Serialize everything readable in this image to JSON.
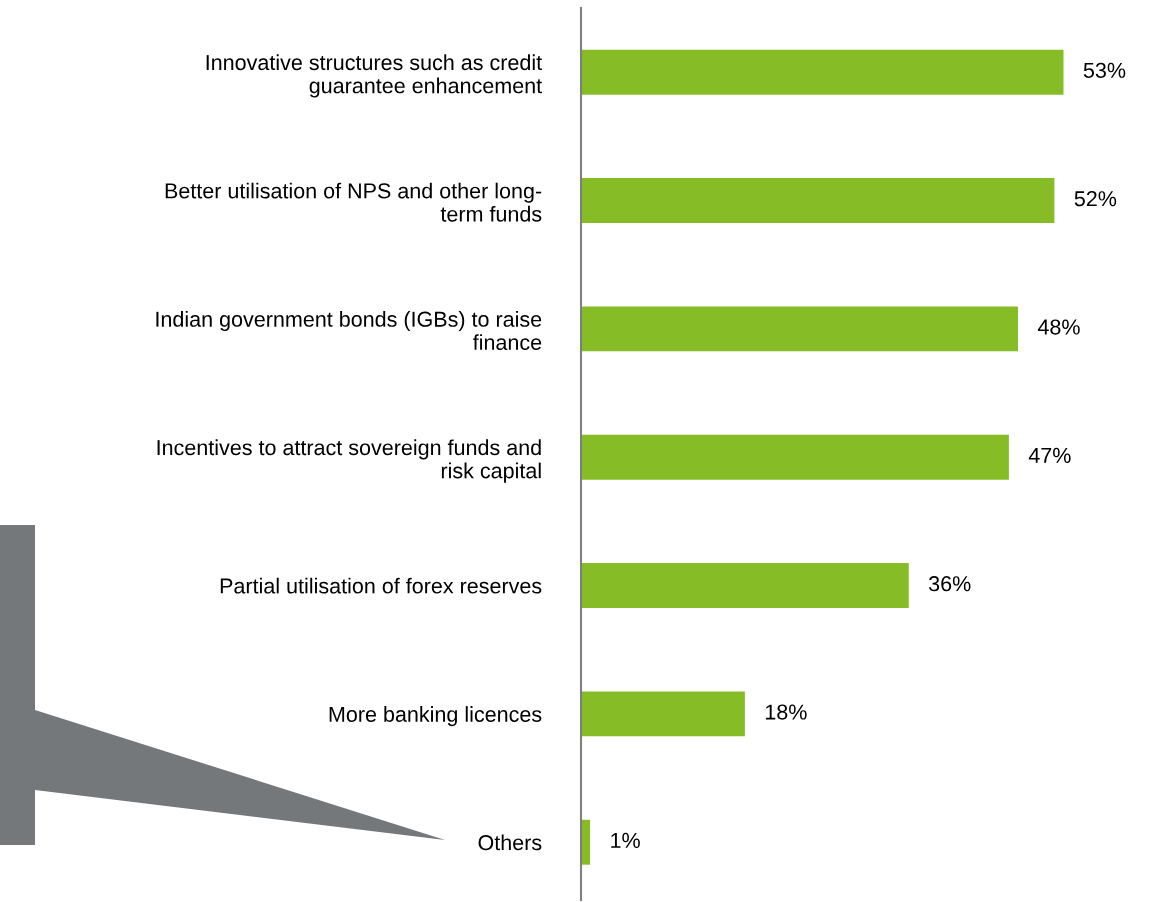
{
  "chart_data": {
    "type": "bar",
    "orientation": "horizontal",
    "categories": [
      "Innovative structures such as credit\nguarantee enhancement",
      "Better utilisation of NPS and other long-\nterm funds",
      "Indian government bonds (IGBs) to raise\nfinance",
      "Incentives to attract sovereign funds and\nrisk capital",
      "Partial utilisation of forex reserves",
      "More banking licences",
      "Others"
    ],
    "values": [
      53,
      52,
      48,
      47,
      36,
      18,
      1
    ],
    "value_labels": [
      "53%",
      "52%",
      "48%",
      "47%",
      "36%",
      "18%",
      "1%"
    ],
    "color": "#86bc25",
    "grid": false,
    "legend": false,
    "tick_labels": "y"
  }
}
